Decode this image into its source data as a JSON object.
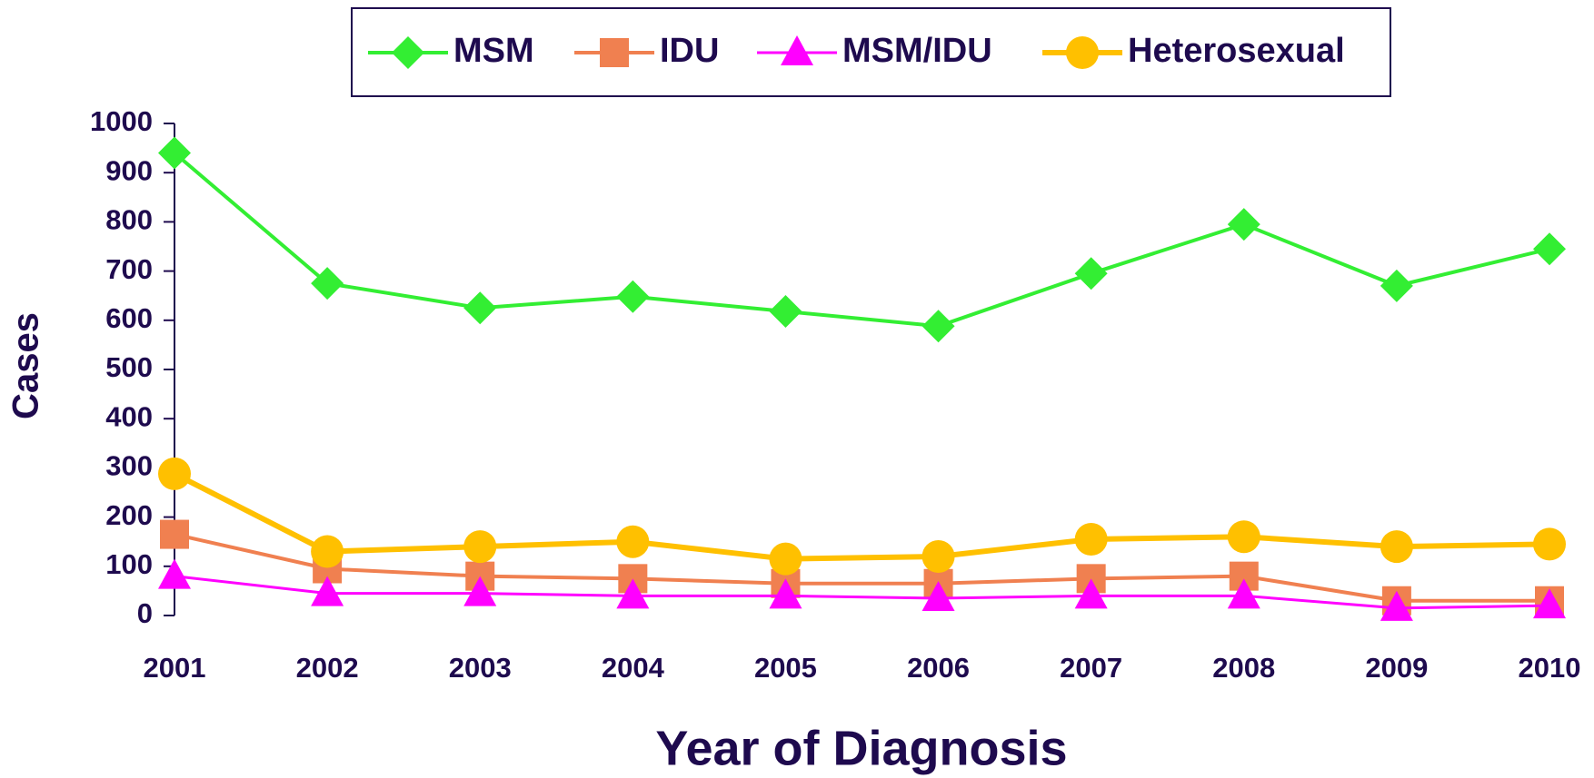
{
  "chart_data": {
    "type": "line",
    "x_label": "Year of Diagnosis",
    "y_label": "Cases",
    "categories": [
      "2001",
      "2002",
      "2003",
      "2004",
      "2005",
      "2006",
      "2007",
      "2008",
      "2009",
      "2010"
    ],
    "series": [
      {
        "name": "MSM",
        "color": "#33ee33",
        "marker": "diamond",
        "values": [
          940,
          675,
          625,
          648,
          618,
          588,
          695,
          795,
          670,
          745
        ]
      },
      {
        "name": "IDU",
        "color": "#f08050",
        "marker": "square",
        "values": [
          165,
          95,
          80,
          75,
          65,
          65,
          75,
          80,
          30,
          30
        ]
      },
      {
        "name": "MSM/IDU",
        "color": "#ff00ff",
        "marker": "triangle",
        "values": [
          80,
          45,
          45,
          40,
          40,
          35,
          40,
          40,
          15,
          20
        ]
      },
      {
        "name": "Heterosexual",
        "color": "#ffc000",
        "marker": "circle",
        "values": [
          288,
          130,
          140,
          150,
          115,
          120,
          155,
          160,
          140,
          145
        ]
      }
    ],
    "ylim": [
      0,
      1000
    ],
    "yticks": [
      0,
      100,
      200,
      300,
      400,
      500,
      600,
      700,
      800,
      900,
      1000
    ],
    "legend_position": "top"
  }
}
